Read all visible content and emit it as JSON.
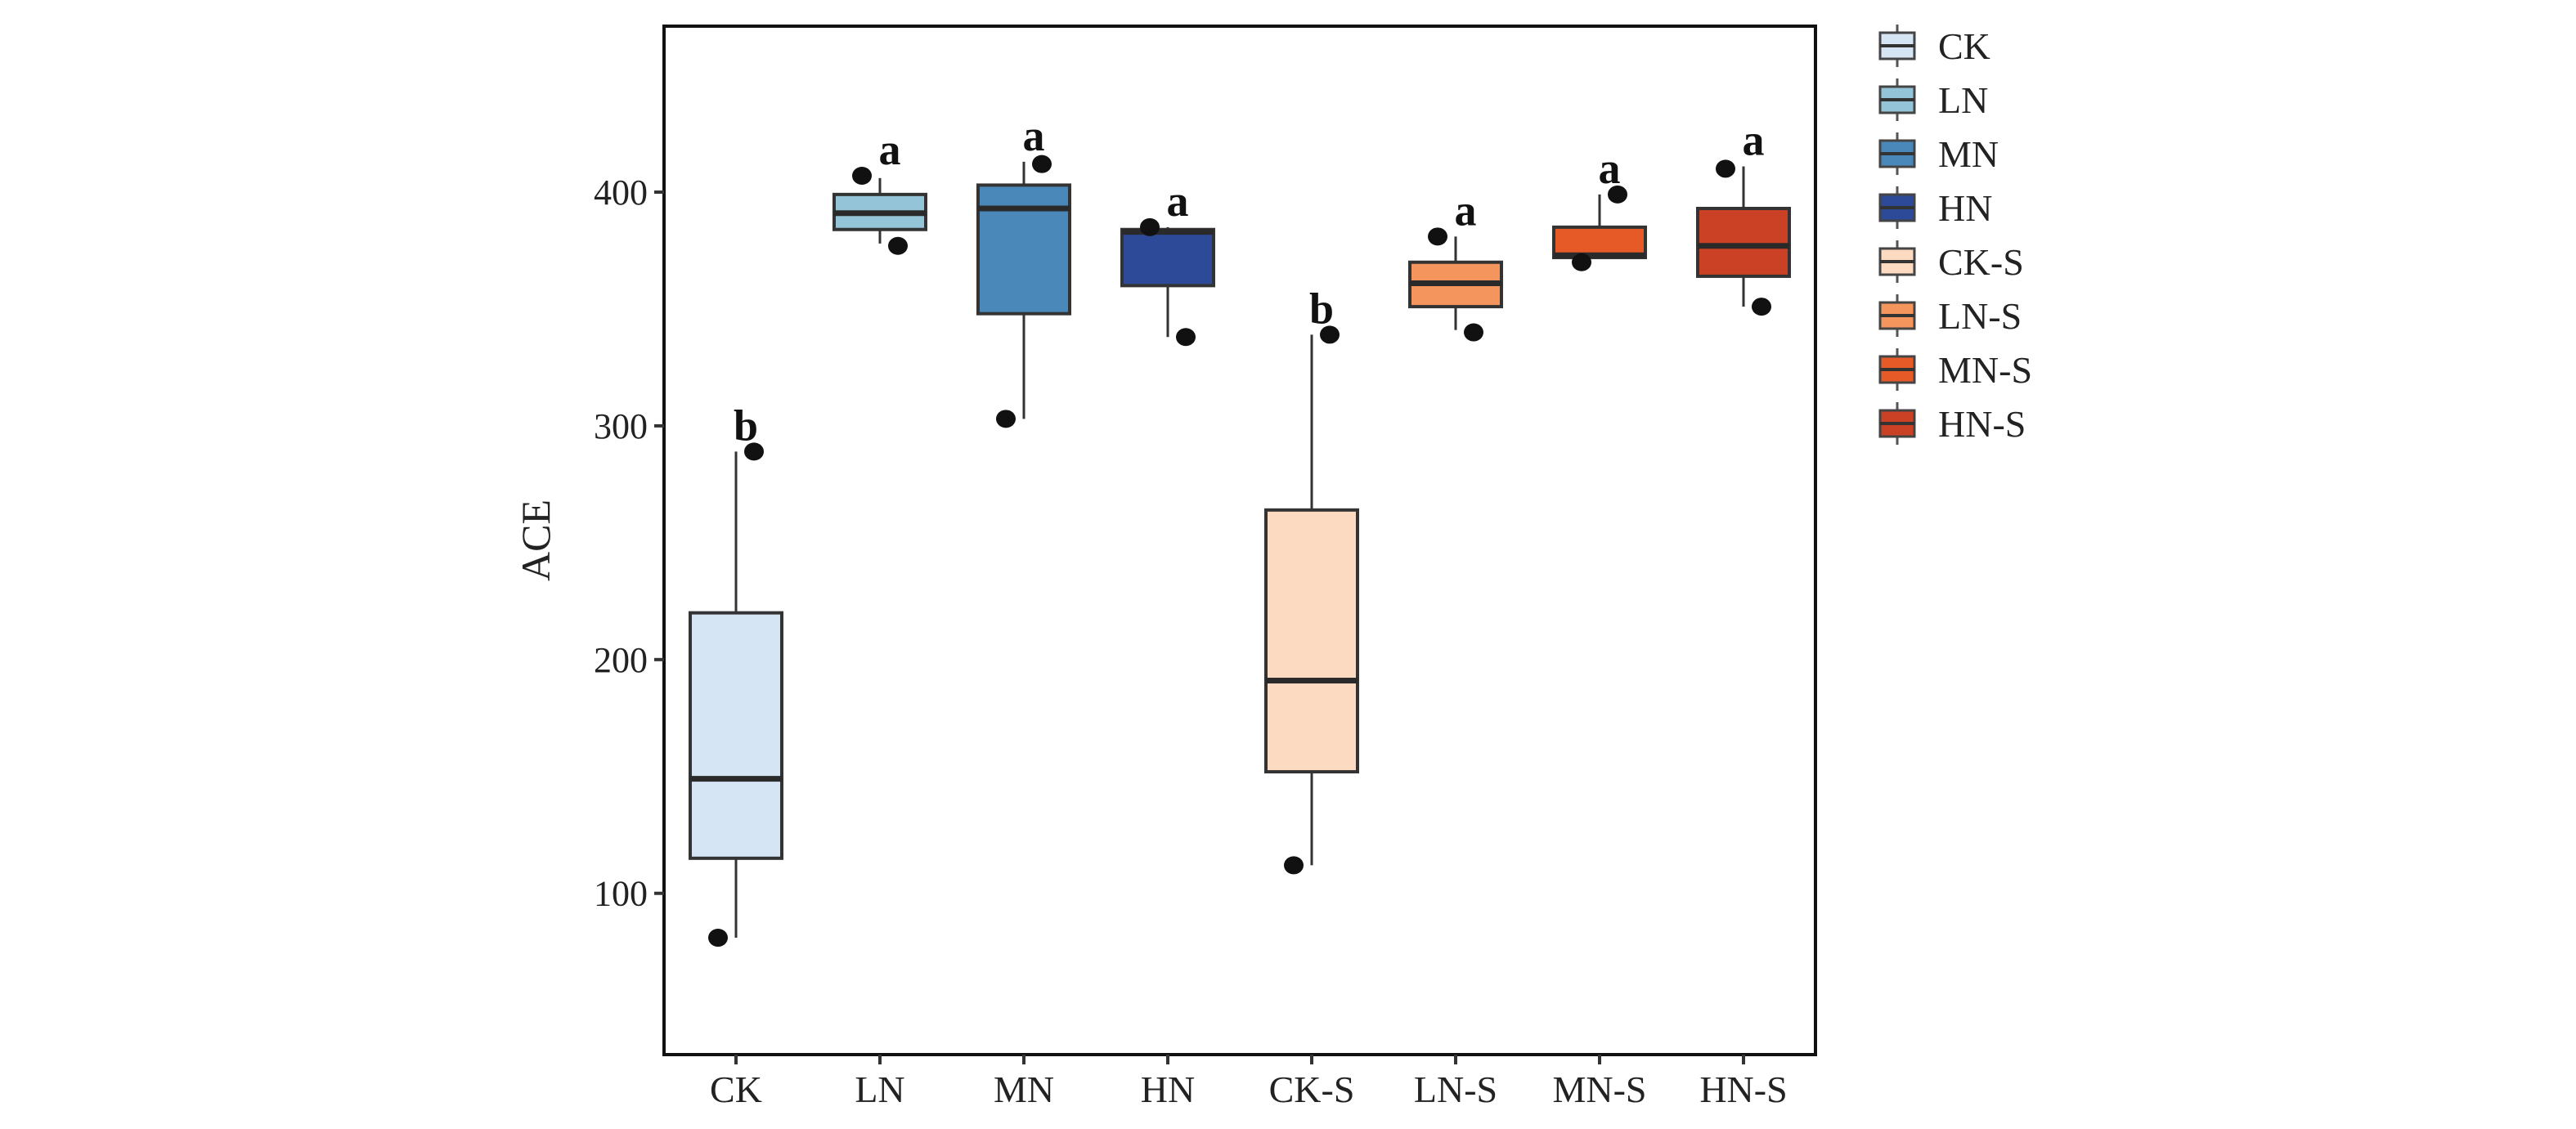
{
  "chart_data": {
    "type": "box",
    "title": "",
    "xlabel": "",
    "ylabel": "ACE",
    "ylim": [
      31,
      471
    ],
    "yticks": [
      100,
      200,
      300,
      400
    ],
    "grid": false,
    "legend_position": "right",
    "categories": [
      "CK",
      "LN",
      "MN",
      "HN",
      "CK-S",
      "LN-S",
      "MN-S",
      "HN-S"
    ],
    "series": [
      {
        "name": "CK",
        "color": "#d6e5f4",
        "whisker_low": 81,
        "q1": 115,
        "median": 149,
        "q3": 220,
        "whisker_high": 289,
        "points": [
          289,
          81
        ],
        "letter": "b"
      },
      {
        "name": "LN",
        "color": "#93c4d8",
        "whisker_low": 378,
        "q1": 384,
        "median": 391,
        "q3": 399,
        "whisker_high": 406,
        "points": [
          407,
          377
        ],
        "letter": "a"
      },
      {
        "name": "MN",
        "color": "#4a88ba",
        "whisker_low": 303,
        "q1": 348,
        "median": 393,
        "q3": 403,
        "whisker_high": 413,
        "points": [
          412,
          303
        ],
        "letter": "a"
      },
      {
        "name": "HN",
        "color": "#2c4a97",
        "whisker_low": 338,
        "q1": 360,
        "median": 383,
        "q3": 384,
        "whisker_high": 385,
        "points": [
          385,
          338
        ],
        "letter": "a"
      },
      {
        "name": "CK-S",
        "color": "#fcd9c1",
        "whisker_low": 112,
        "q1": 152,
        "median": 191,
        "q3": 264,
        "whisker_high": 339,
        "points": [
          339,
          112
        ],
        "letter": "b"
      },
      {
        "name": "LN-S",
        "color": "#f5955e",
        "whisker_low": 341,
        "q1": 351,
        "median": 361,
        "q3": 370,
        "whisker_high": 381,
        "points": [
          381,
          340
        ],
        "letter": "a"
      },
      {
        "name": "MN-S",
        "color": "#e65a27",
        "whisker_low": 372,
        "q1": 372,
        "median": 373,
        "q3": 385,
        "whisker_high": 399,
        "points": [
          399,
          370
        ],
        "letter": "a"
      },
      {
        "name": "HN-S",
        "color": "#cb4125",
        "whisker_low": 351,
        "q1": 364,
        "median": 377,
        "q3": 393,
        "whisker_high": 411,
        "points": [
          410,
          351
        ],
        "letter": "a"
      }
    ],
    "legend": [
      "CK",
      "LN",
      "MN",
      "HN",
      "CK-S",
      "LN-S",
      "MN-S",
      "HN-S"
    ]
  }
}
